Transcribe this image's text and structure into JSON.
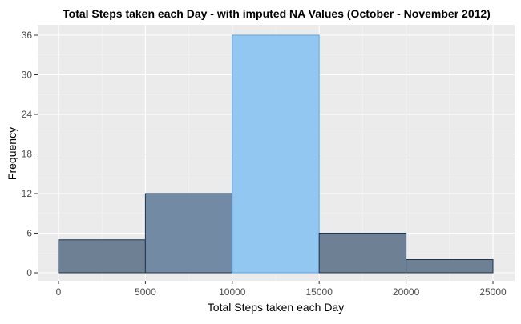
{
  "chart_data": {
    "type": "bar",
    "title": "Total Steps taken each Day - with imputed NA Values (October - November 2012)",
    "xlabel": "Total Steps taken each Day",
    "ylabel": "Frequency",
    "xlim": [
      0,
      25000
    ],
    "ylim": [
      0,
      36
    ],
    "x_ticks": [
      0,
      5000,
      10000,
      15000,
      20000,
      25000
    ],
    "x_tick_labels": [
      "0",
      "5000",
      "10000",
      "15000",
      "20000",
      "25000"
    ],
    "y_ticks": [
      0,
      6,
      12,
      18,
      24,
      30,
      36
    ],
    "y_tick_labels": [
      "0",
      "6",
      "12",
      "18",
      "24",
      "30",
      "36"
    ],
    "bins": [
      {
        "start": 0,
        "end": 5000,
        "value": 5
      },
      {
        "start": 5000,
        "end": 10000,
        "value": 12
      },
      {
        "start": 10000,
        "end": 15000,
        "value": 36
      },
      {
        "start": 15000,
        "end": 20000,
        "value": 6
      },
      {
        "start": 20000,
        "end": 25000,
        "value": 2
      }
    ],
    "highlight_bin_index": 2,
    "grid": true,
    "legend": "none",
    "colors": {
      "panel_background": "#EBEBEB",
      "grid_major": "#FFFFFF",
      "grid_minor": "#F5F5F5",
      "bar_fill": "#6E8093",
      "bar_fill_second": "#728AA3",
      "bar_stroke": "#1F3450",
      "highlight_fill": "#92C7F2",
      "highlight_stroke": "#5AA6E6",
      "axis_text": "#4D4D4D",
      "title_text": "#000000"
    }
  }
}
